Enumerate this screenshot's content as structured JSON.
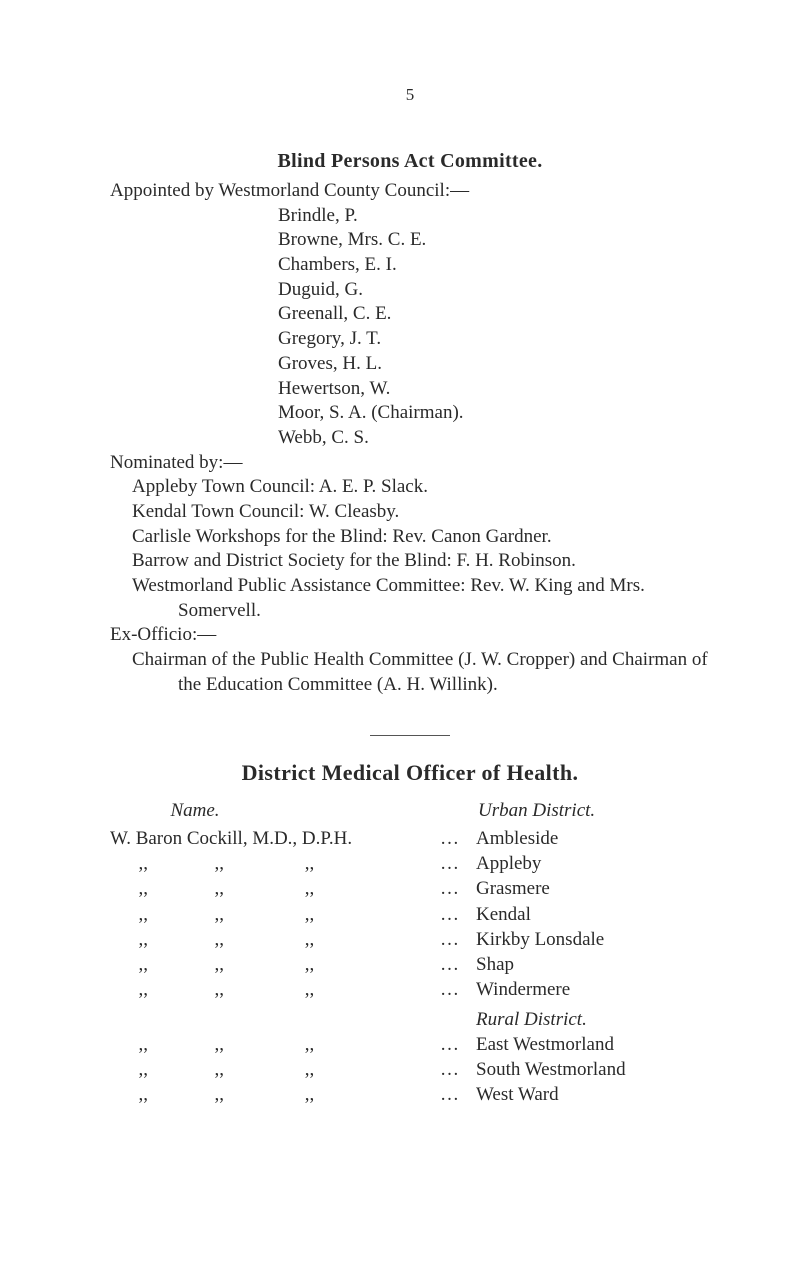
{
  "pageNumber": "5",
  "committee": {
    "title": "Blind Persons Act Committee.",
    "appointedLine": "Appointed by Westmorland County Council:—",
    "appointedNames": [
      "Brindle, P.",
      "Browne, Mrs. C. E.",
      "Chambers, E. I.",
      "Duguid, G.",
      "Greenall, C. E.",
      "Gregory, J. T.",
      "Groves, H. L.",
      "Hewertson, W.",
      "Moor, S. A. (Chairman).",
      "Webb, C. S."
    ],
    "nominatedHeading": "Nominated by:—",
    "nominated": [
      "Appleby Town Council: A. E. P. Slack.",
      "Kendal Town Council: W. Cleasby.",
      "Carlisle Workshops for the Blind: Rev. Canon Gardner.",
      "Barrow and District Society for the Blind: F. H. Robinson.",
      "Westmorland Public Assistance Committee: Rev. W. King and Mrs. Somervell."
    ],
    "exHeading": "Ex-Officio:—",
    "exText": "Chairman of the Public Health Committee (J. W. Cropper) and Chairman of the Education Committee (A. H. Willink)."
  },
  "districtOfficer": {
    "title": "District Medical Officer of Health.",
    "headers": {
      "name": "Name.",
      "district": "Urban District."
    },
    "firstRow": {
      "left": "W. Baron Cockill, M.D., D.P.H.",
      "dots": "…",
      "right": "Ambleside"
    },
    "dittoRows": [
      {
        "right": "Appleby"
      },
      {
        "right": "Grasmere"
      },
      {
        "right": "Kendal"
      },
      {
        "right": "Kirkby Lonsdale"
      },
      {
        "right": "Shap"
      },
      {
        "right": "Windermere"
      }
    ],
    "ruralHeader": "Rural District.",
    "ruralRows": [
      {
        "right": "East Westmorland"
      },
      {
        "right": "South Westmorland"
      },
      {
        "right": "West Ward"
      }
    ],
    "dittoLeft": "      ,,              ,,                 ,,",
    "dots": "…"
  }
}
